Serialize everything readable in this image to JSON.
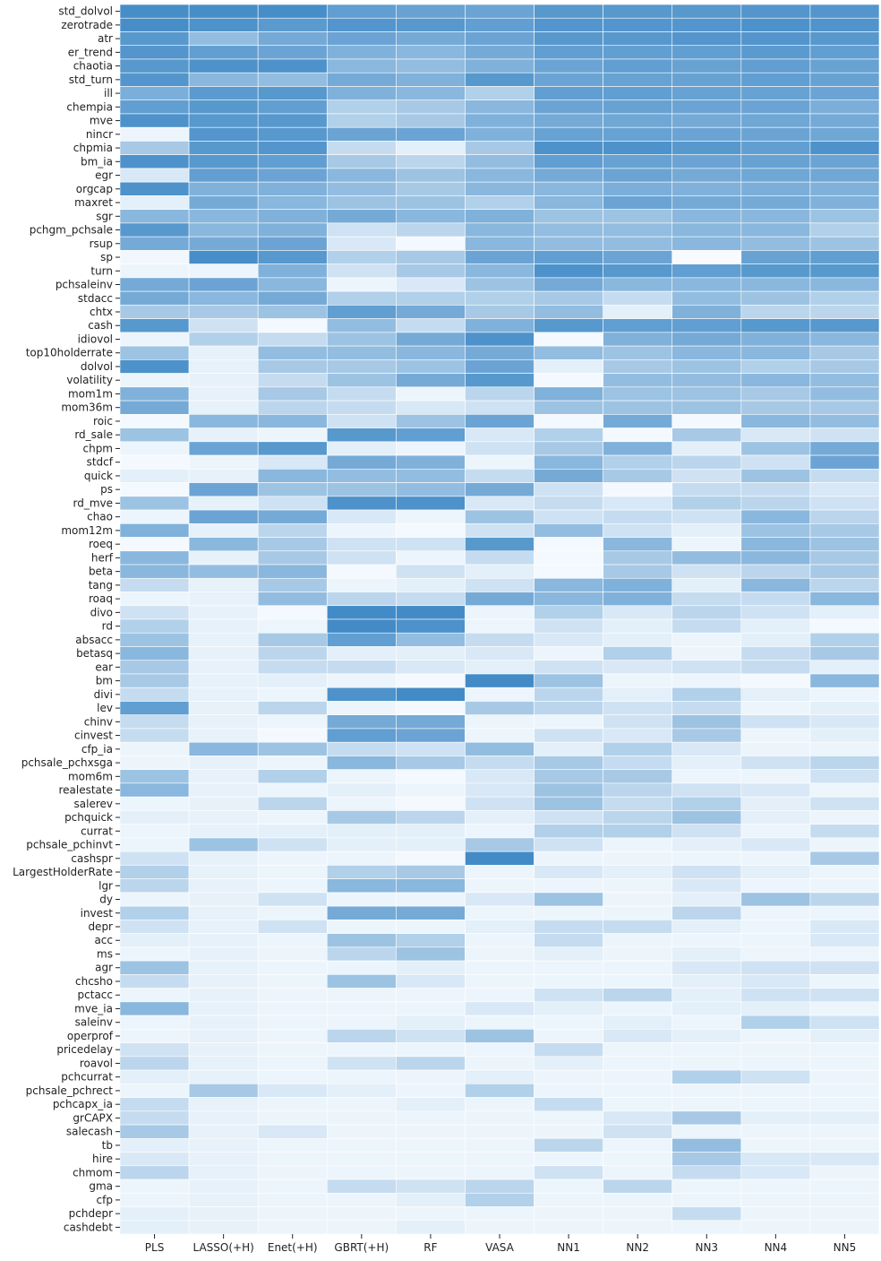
{
  "chart_data": {
    "type": "heatmap",
    "title": "",
    "xlabel": "",
    "ylabel": "",
    "columns": [
      "PLS",
      "LASSO(+H)",
      "Enet(+H)",
      "GBRT(+H)",
      "RF",
      "VASA",
      "NN1",
      "NN2",
      "NN3",
      "NN4",
      "NN5"
    ],
    "rows": [
      "std_dolvol",
      "zerotrade",
      "atr",
      "er_trend",
      "chaotia",
      "std_turn",
      "ill",
      "chempia",
      "mve",
      "nincr",
      "chpmia",
      "bm_ia",
      "egr",
      "orgcap",
      "maxret",
      "sgr",
      "pchgm_pchsale",
      "rsup",
      "sp",
      "turn",
      "pchsaleinv",
      "stdacc",
      "chtx",
      "cash",
      "idiovol",
      "top10holderrate",
      "dolvol",
      "volatility",
      "mom1m",
      "mom36m",
      "roic",
      "rd_sale",
      "chpm",
      "stdcf",
      "quick",
      "ps",
      "rd_mve",
      "chao",
      "mom12m",
      "roeq",
      "herf",
      "beta",
      "tang",
      "roaq",
      "divo",
      "rd",
      "absacc",
      "betasq",
      "ear",
      "bm",
      "divi",
      "lev",
      "chinv",
      "cinvest",
      "cfp_ia",
      "pchsale_pchxsga",
      "mom6m",
      "realestate",
      "salerev",
      "pchquick",
      "currat",
      "pchsale_pchinvt",
      "cashspr",
      "LargestHolderRate",
      "lgr",
      "dy",
      "invest",
      "depr",
      "acc",
      "ms",
      "agr",
      "chcsho",
      "pctacc",
      "mve_ia",
      "saleinv",
      "operprof",
      "pricedelay",
      "roavol",
      "pchcurrat",
      "pchsale_pchrect",
      "pchcapx_ia",
      "grCAPX",
      "salecash",
      "tb",
      "hire",
      "chmom",
      "gma",
      "cfp",
      "pchdepr",
      "cashdebt"
    ],
    "color_low": "#f7fbff",
    "color_high": "#2f7fc1",
    "values": [
      [
        0.88,
        0.88,
        0.88,
        0.75,
        0.72,
        0.7,
        0.8,
        0.8,
        0.8,
        0.82,
        0.82
      ],
      [
        0.88,
        0.85,
        0.78,
        0.82,
        0.8,
        0.75,
        0.82,
        0.82,
        0.82,
        0.85,
        0.83
      ],
      [
        0.8,
        0.5,
        0.65,
        0.7,
        0.65,
        0.7,
        0.8,
        0.8,
        0.82,
        0.82,
        0.8
      ],
      [
        0.82,
        0.75,
        0.7,
        0.6,
        0.55,
        0.65,
        0.75,
        0.75,
        0.75,
        0.78,
        0.75
      ],
      [
        0.8,
        0.85,
        0.85,
        0.55,
        0.5,
        0.6,
        0.7,
        0.75,
        0.72,
        0.75,
        0.72
      ],
      [
        0.82,
        0.55,
        0.5,
        0.65,
        0.6,
        0.8,
        0.7,
        0.72,
        0.72,
        0.75,
        0.72
      ],
      [
        0.62,
        0.78,
        0.8,
        0.6,
        0.55,
        0.35,
        0.75,
        0.75,
        0.72,
        0.72,
        0.7
      ],
      [
        0.75,
        0.8,
        0.75,
        0.35,
        0.4,
        0.55,
        0.7,
        0.72,
        0.7,
        0.7,
        0.62
      ],
      [
        0.85,
        0.8,
        0.8,
        0.35,
        0.4,
        0.6,
        0.65,
        0.68,
        0.65,
        0.68,
        0.65
      ],
      [
        0.05,
        0.82,
        0.8,
        0.7,
        0.7,
        0.6,
        0.72,
        0.72,
        0.7,
        0.7,
        0.68
      ],
      [
        0.4,
        0.8,
        0.82,
        0.25,
        0.1,
        0.4,
        0.85,
        0.85,
        0.8,
        0.75,
        0.85
      ],
      [
        0.85,
        0.8,
        0.75,
        0.4,
        0.3,
        0.5,
        0.75,
        0.72,
        0.7,
        0.72,
        0.7
      ],
      [
        0.15,
        0.75,
        0.7,
        0.55,
        0.45,
        0.55,
        0.65,
        0.7,
        0.65,
        0.68,
        0.68
      ],
      [
        0.85,
        0.6,
        0.6,
        0.5,
        0.4,
        0.55,
        0.55,
        0.62,
        0.6,
        0.62,
        0.6
      ],
      [
        0.1,
        0.65,
        0.55,
        0.45,
        0.45,
        0.35,
        0.55,
        0.7,
        0.65,
        0.65,
        0.6
      ],
      [
        0.55,
        0.55,
        0.6,
        0.65,
        0.55,
        0.6,
        0.45,
        0.45,
        0.55,
        0.55,
        0.45
      ],
      [
        0.8,
        0.55,
        0.6,
        0.2,
        0.3,
        0.55,
        0.5,
        0.5,
        0.55,
        0.55,
        0.35
      ],
      [
        0.65,
        0.65,
        0.7,
        0.15,
        0.02,
        0.55,
        0.5,
        0.5,
        0.55,
        0.5,
        0.45
      ],
      [
        0.03,
        0.88,
        0.8,
        0.35,
        0.4,
        0.7,
        0.75,
        0.7,
        0.0,
        0.72,
        0.75
      ],
      [
        0.05,
        0.05,
        0.6,
        0.2,
        0.4,
        0.55,
        0.85,
        0.8,
        0.75,
        0.8,
        0.8
      ],
      [
        0.65,
        0.7,
        0.55,
        0.05,
        0.15,
        0.45,
        0.65,
        0.55,
        0.55,
        0.55,
        0.55
      ],
      [
        0.65,
        0.55,
        0.65,
        0.35,
        0.35,
        0.35,
        0.4,
        0.25,
        0.5,
        0.45,
        0.35
      ],
      [
        0.4,
        0.4,
        0.45,
        0.75,
        0.65,
        0.4,
        0.5,
        0.1,
        0.6,
        0.3,
        0.3
      ],
      [
        0.8,
        0.2,
        0.02,
        0.5,
        0.25,
        0.6,
        0.8,
        0.75,
        0.75,
        0.8,
        0.8
      ],
      [
        0.05,
        0.35,
        0.25,
        0.45,
        0.65,
        0.85,
        0.02,
        0.6,
        0.65,
        0.6,
        0.55
      ],
      [
        0.45,
        0.08,
        0.5,
        0.5,
        0.55,
        0.65,
        0.5,
        0.45,
        0.55,
        0.55,
        0.4
      ],
      [
        0.85,
        0.08,
        0.4,
        0.4,
        0.45,
        0.7,
        0.1,
        0.4,
        0.45,
        0.35,
        0.4
      ],
      [
        0.05,
        0.08,
        0.25,
        0.45,
        0.65,
        0.8,
        0.02,
        0.5,
        0.5,
        0.55,
        0.5
      ],
      [
        0.6,
        0.08,
        0.4,
        0.25,
        0.05,
        0.3,
        0.6,
        0.45,
        0.45,
        0.4,
        0.5
      ],
      [
        0.65,
        0.08,
        0.3,
        0.25,
        0.15,
        0.2,
        0.45,
        0.45,
        0.45,
        0.4,
        0.4
      ],
      [
        0.02,
        0.55,
        0.55,
        0.2,
        0.45,
        0.7,
        0.02,
        0.65,
        0.02,
        0.55,
        0.5
      ],
      [
        0.45,
        0.08,
        0.05,
        0.8,
        0.75,
        0.15,
        0.35,
        0.02,
        0.4,
        0.15,
        0.2
      ],
      [
        0.05,
        0.7,
        0.8,
        0.1,
        0.05,
        0.2,
        0.4,
        0.6,
        0.1,
        0.45,
        0.65
      ],
      [
        0.02,
        0.05,
        0.15,
        0.65,
        0.6,
        0.05,
        0.55,
        0.35,
        0.3,
        0.2,
        0.7
      ],
      [
        0.1,
        0.08,
        0.55,
        0.5,
        0.5,
        0.25,
        0.65,
        0.4,
        0.2,
        0.45,
        0.25
      ],
      [
        0.02,
        0.7,
        0.45,
        0.45,
        0.5,
        0.65,
        0.2,
        0.02,
        0.25,
        0.25,
        0.15
      ],
      [
        0.45,
        0.08,
        0.2,
        0.85,
        0.85,
        0.15,
        0.25,
        0.15,
        0.35,
        0.3,
        0.2
      ],
      [
        0.05,
        0.7,
        0.65,
        0.15,
        0.05,
        0.45,
        0.2,
        0.25,
        0.2,
        0.55,
        0.3
      ],
      [
        0.6,
        0.08,
        0.3,
        0.05,
        0.02,
        0.2,
        0.5,
        0.2,
        0.1,
        0.45,
        0.4
      ],
      [
        0.02,
        0.55,
        0.4,
        0.2,
        0.2,
        0.8,
        0.02,
        0.55,
        0.05,
        0.55,
        0.45
      ],
      [
        0.55,
        0.08,
        0.4,
        0.2,
        0.05,
        0.25,
        0.02,
        0.4,
        0.5,
        0.55,
        0.4
      ],
      [
        0.55,
        0.5,
        0.55,
        0.02,
        0.2,
        0.1,
        0.02,
        0.4,
        0.2,
        0.3,
        0.4
      ],
      [
        0.25,
        0.08,
        0.4,
        0.05,
        0.1,
        0.2,
        0.55,
        0.6,
        0.1,
        0.55,
        0.3
      ],
      [
        0.05,
        0.08,
        0.5,
        0.3,
        0.25,
        0.65,
        0.55,
        0.6,
        0.25,
        0.25,
        0.55
      ],
      [
        0.2,
        0.08,
        0.02,
        0.9,
        0.9,
        0.05,
        0.35,
        0.15,
        0.3,
        0.2,
        0.1
      ],
      [
        0.35,
        0.08,
        0.05,
        0.9,
        0.85,
        0.05,
        0.2,
        0.1,
        0.25,
        0.1,
        0.02
      ],
      [
        0.45,
        0.08,
        0.4,
        0.75,
        0.5,
        0.25,
        0.15,
        0.1,
        0.05,
        0.1,
        0.35
      ],
      [
        0.55,
        0.08,
        0.3,
        0.1,
        0.1,
        0.15,
        0.05,
        0.35,
        0.05,
        0.25,
        0.4
      ],
      [
        0.4,
        0.08,
        0.25,
        0.25,
        0.15,
        0.1,
        0.2,
        0.15,
        0.2,
        0.25,
        0.1
      ],
      [
        0.4,
        0.08,
        0.1,
        0.05,
        0.02,
        0.9,
        0.45,
        0.05,
        0.05,
        0.02,
        0.55
      ],
      [
        0.25,
        0.08,
        0.05,
        0.85,
        0.9,
        0.05,
        0.3,
        0.1,
        0.35,
        0.1,
        0.05
      ],
      [
        0.75,
        0.08,
        0.3,
        0.05,
        0.02,
        0.4,
        0.3,
        0.2,
        0.25,
        0.05,
        0.1
      ],
      [
        0.25,
        0.08,
        0.05,
        0.65,
        0.65,
        0.05,
        0.05,
        0.2,
        0.45,
        0.2,
        0.15
      ],
      [
        0.25,
        0.08,
        0.02,
        0.75,
        0.7,
        0.05,
        0.2,
        0.15,
        0.4,
        0.05,
        0.1
      ],
      [
        0.05,
        0.55,
        0.45,
        0.25,
        0.2,
        0.5,
        0.1,
        0.35,
        0.15,
        0.05,
        0.05
      ],
      [
        0.05,
        0.08,
        0.05,
        0.55,
        0.4,
        0.25,
        0.4,
        0.25,
        0.1,
        0.2,
        0.3
      ],
      [
        0.45,
        0.08,
        0.35,
        0.05,
        0.02,
        0.15,
        0.4,
        0.4,
        0.05,
        0.05,
        0.2
      ],
      [
        0.55,
        0.08,
        0.05,
        0.1,
        0.05,
        0.15,
        0.45,
        0.3,
        0.2,
        0.15,
        0.05
      ],
      [
        0.05,
        0.08,
        0.3,
        0.05,
        0.02,
        0.2,
        0.45,
        0.25,
        0.35,
        0.1,
        0.2
      ],
      [
        0.1,
        0.08,
        0.05,
        0.4,
        0.3,
        0.1,
        0.2,
        0.3,
        0.45,
        0.1,
        0.05
      ],
      [
        0.05,
        0.08,
        0.1,
        0.1,
        0.1,
        0.05,
        0.35,
        0.35,
        0.2,
        0.05,
        0.25
      ],
      [
        0.05,
        0.45,
        0.2,
        0.1,
        0.1,
        0.4,
        0.2,
        0.05,
        0.1,
        0.15,
        0.05
      ],
      [
        0.2,
        0.08,
        0.05,
        0.05,
        0.02,
        0.9,
        0.05,
        0.05,
        0.05,
        0.05,
        0.4
      ],
      [
        0.35,
        0.08,
        0.05,
        0.35,
        0.4,
        0.05,
        0.15,
        0.1,
        0.2,
        0.1,
        0.05
      ],
      [
        0.3,
        0.08,
        0.05,
        0.55,
        0.55,
        0.05,
        0.05,
        0.05,
        0.15,
        0.05,
        0.05
      ],
      [
        0.05,
        0.08,
        0.2,
        0.05,
        0.05,
        0.15,
        0.45,
        0.05,
        0.1,
        0.45,
        0.3
      ],
      [
        0.35,
        0.08,
        0.05,
        0.65,
        0.65,
        0.05,
        0.05,
        0.05,
        0.3,
        0.05,
        0.05
      ],
      [
        0.2,
        0.08,
        0.2,
        0.05,
        0.05,
        0.1,
        0.25,
        0.25,
        0.1,
        0.05,
        0.15
      ],
      [
        0.1,
        0.08,
        0.05,
        0.45,
        0.35,
        0.05,
        0.25,
        0.05,
        0.05,
        0.05,
        0.15
      ],
      [
        0.05,
        0.08,
        0.05,
        0.3,
        0.45,
        0.05,
        0.1,
        0.05,
        0.1,
        0.05,
        0.05
      ],
      [
        0.45,
        0.08,
        0.05,
        0.05,
        0.1,
        0.05,
        0.05,
        0.05,
        0.15,
        0.2,
        0.2
      ],
      [
        0.25,
        0.08,
        0.05,
        0.45,
        0.15,
        0.05,
        0.05,
        0.05,
        0.1,
        0.15,
        0.05
      ],
      [
        0.05,
        0.08,
        0.05,
        0.05,
        0.05,
        0.05,
        0.2,
        0.3,
        0.1,
        0.2,
        0.2
      ],
      [
        0.55,
        0.08,
        0.05,
        0.05,
        0.05,
        0.15,
        0.1,
        0.05,
        0.1,
        0.1,
        0.05
      ],
      [
        0.05,
        0.08,
        0.05,
        0.05,
        0.1,
        0.05,
        0.05,
        0.1,
        0.05,
        0.35,
        0.2
      ],
      [
        0.05,
        0.08,
        0.05,
        0.3,
        0.2,
        0.45,
        0.05,
        0.15,
        0.1,
        0.05,
        0.1
      ],
      [
        0.2,
        0.08,
        0.05,
        0.05,
        0.05,
        0.05,
        0.25,
        0.05,
        0.05,
        0.05,
        0.05
      ],
      [
        0.3,
        0.08,
        0.05,
        0.2,
        0.3,
        0.05,
        0.1,
        0.05,
        0.05,
        0.05,
        0.05
      ],
      [
        0.1,
        0.08,
        0.05,
        0.05,
        0.05,
        0.1,
        0.05,
        0.05,
        0.35,
        0.2,
        0.05
      ],
      [
        0.05,
        0.4,
        0.15,
        0.1,
        0.05,
        0.35,
        0.05,
        0.05,
        0.05,
        0.05,
        0.05
      ],
      [
        0.25,
        0.08,
        0.05,
        0.05,
        0.1,
        0.05,
        0.25,
        0.05,
        0.05,
        0.05,
        0.05
      ],
      [
        0.25,
        0.08,
        0.05,
        0.05,
        0.05,
        0.05,
        0.05,
        0.15,
        0.4,
        0.1,
        0.1
      ],
      [
        0.4,
        0.08,
        0.15,
        0.05,
        0.05,
        0.05,
        0.05,
        0.2,
        0.05,
        0.05,
        0.05
      ],
      [
        0.1,
        0.08,
        0.05,
        0.05,
        0.05,
        0.05,
        0.3,
        0.05,
        0.5,
        0.05,
        0.05
      ],
      [
        0.15,
        0.08,
        0.05,
        0.05,
        0.05,
        0.05,
        0.05,
        0.05,
        0.4,
        0.15,
        0.15
      ],
      [
        0.3,
        0.08,
        0.05,
        0.05,
        0.05,
        0.05,
        0.2,
        0.05,
        0.25,
        0.15,
        0.05
      ],
      [
        0.05,
        0.08,
        0.05,
        0.25,
        0.2,
        0.3,
        0.05,
        0.3,
        0.05,
        0.05,
        0.05
      ],
      [
        0.05,
        0.08,
        0.05,
        0.05,
        0.1,
        0.35,
        0.05,
        0.05,
        0.05,
        0.05,
        0.05
      ],
      [
        0.1,
        0.08,
        0.05,
        0.05,
        0.05,
        0.05,
        0.05,
        0.05,
        0.25,
        0.05,
        0.05
      ],
      [
        0.1,
        0.08,
        0.05,
        0.05,
        0.1,
        0.05,
        0.05,
        0.05,
        0.05,
        0.05,
        0.05
      ]
    ]
  }
}
